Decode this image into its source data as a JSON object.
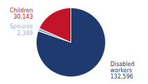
{
  "chart_data": {
    "type": "pie",
    "categories": [
      "Disabled\nworkers\n132,596",
      "Spouses\n2,346",
      "Children\n30,143"
    ],
    "values": [
      132596,
      2346,
      30143
    ],
    "colors": [
      "#1e3a6e",
      "#9eb3c2",
      "#c1152b"
    ]
  }
}
